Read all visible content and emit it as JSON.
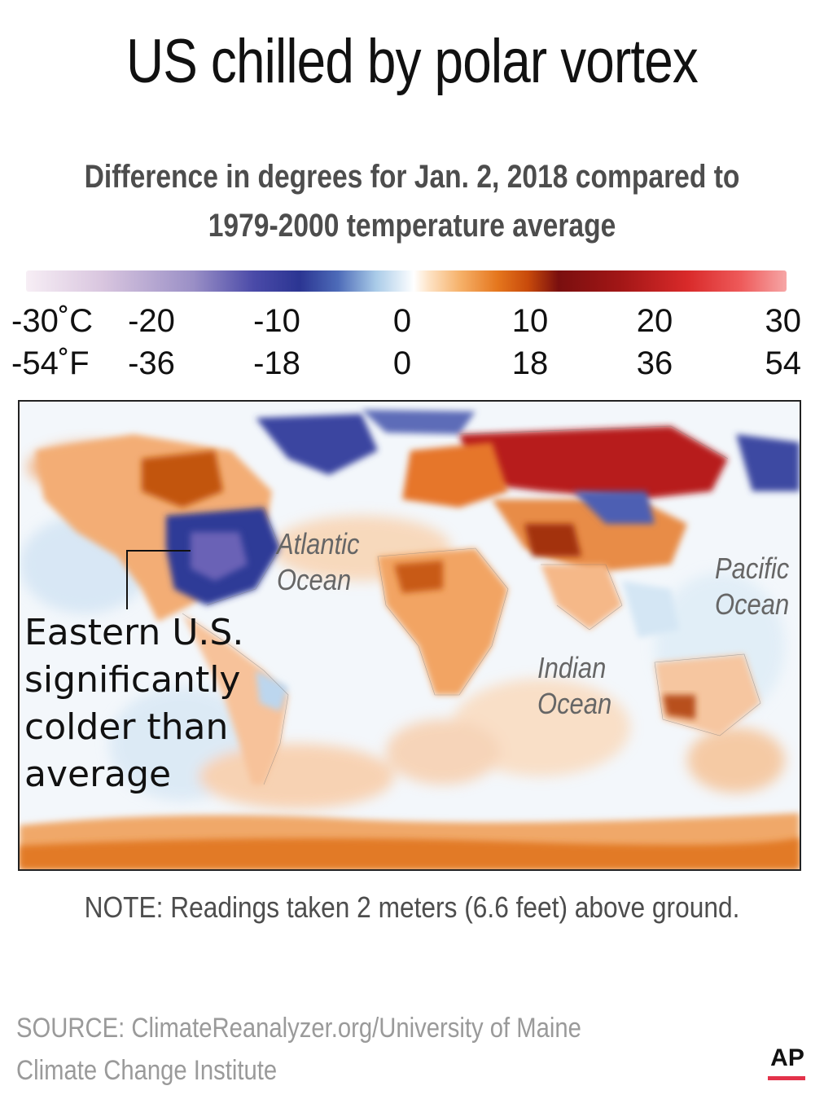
{
  "title": "US chilled by polar vortex",
  "subtitle": {
    "line1": "Difference in degrees for Jan. 2, 2018 compared to",
    "line2": "1979-2000 temperature average"
  },
  "legend": {
    "celsius_ticks": [
      "-30˚C",
      "-20",
      "-10",
      "0",
      "10",
      "20",
      "30"
    ],
    "fahrenheit_ticks": [
      "-54˚F",
      "-36",
      "-18",
      "0",
      "18",
      "36",
      "54"
    ],
    "colors": {
      "cold_extreme": "#f3e6f0",
      "cold_mid": "#9a8fc6",
      "cold_deep": "#2b3592",
      "cold_light": "#a9cbe8",
      "neutral": "#ffffff",
      "warm_light": "#f6b26b",
      "warm_mid": "#d9580e",
      "warm_deep": "#7a0f0f",
      "warm_red": "#d92a2a",
      "warm_extreme": "#f6a6a6"
    }
  },
  "map": {
    "ocean_labels": {
      "atlantic": [
        "Atlantic",
        "Ocean"
      ],
      "pacific": [
        "Pacific",
        "Ocean"
      ],
      "indian": [
        "Indian",
        "Ocean"
      ]
    },
    "callout": [
      "Eastern U.S.",
      "significantly",
      "colder than",
      "average"
    ]
  },
  "note": "NOTE: Readings taken 2 meters (6.6 feet) above ground.",
  "source": {
    "line1": "SOURCE: ClimateReanalyzer.org/University of Maine",
    "line2": "Climate Change Institute"
  },
  "logo": {
    "text": "AP",
    "accent": "#e3324a"
  }
}
